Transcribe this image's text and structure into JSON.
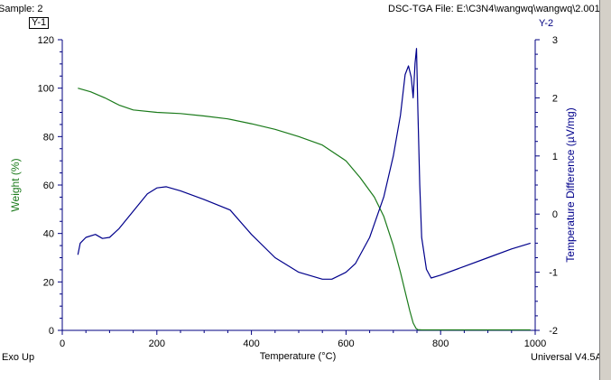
{
  "header": {
    "sample_label": "Sample: 2",
    "file_label": "DSC-TGA File: E:\\C3N4\\wangwq\\wangwq\\2.001",
    "y1_tag": "Y-1",
    "y2_tag": "Y-2"
  },
  "footer": {
    "left_label": "Exo Up",
    "right_label": "Universal V4.5A"
  },
  "colors": {
    "weight_series": "#1a7a1a",
    "heatflow_series": "#00008b",
    "axis": "#000080",
    "left_axis_label": "#1a7a1a",
    "right_axis_label": "#00008b"
  },
  "chart_data": {
    "type": "line",
    "xlabel": "Temperature (°C)",
    "ylabel_left": "Weight (%)",
    "ylabel_right": "Temperature Difference (µV/mg)",
    "xlim": [
      0,
      1000
    ],
    "ylim_left": [
      0,
      120
    ],
    "ylim_right": [
      -2,
      3
    ],
    "x_ticks": [
      0,
      200,
      400,
      600,
      800,
      1000
    ],
    "y_left_ticks": [
      0,
      20,
      40,
      60,
      80,
      100,
      120
    ],
    "y_right_ticks": [
      -2,
      -1,
      0,
      1,
      2,
      3
    ],
    "grid": false,
    "series": [
      {
        "axis": "left",
        "color": "#1a7a1a",
        "x": [
          33,
          60,
          90,
          120,
          150,
          200,
          250,
          300,
          350,
          400,
          450,
          500,
          550,
          600,
          630,
          660,
          680,
          700,
          715,
          725,
          735,
          742,
          748,
          752,
          760,
          800,
          900,
          990
        ],
        "y": [
          100,
          98.5,
          96,
          93,
          91,
          90,
          89.5,
          88.5,
          87.3,
          85.3,
          83,
          80,
          76.5,
          70,
          63,
          55,
          47,
          35,
          24,
          16,
          8,
          3,
          0.8,
          0.3,
          0.2,
          0.2,
          0.2,
          0.2
        ]
      },
      {
        "axis": "right",
        "color": "#00008b",
        "x": [
          33,
          38,
          50,
          70,
          85,
          100,
          120,
          150,
          180,
          200,
          220,
          250,
          300,
          355,
          400,
          450,
          500,
          550,
          570,
          600,
          620,
          650,
          680,
          700,
          715,
          725,
          732,
          738,
          742,
          746,
          749,
          752,
          756,
          760,
          770,
          780,
          800,
          850,
          900,
          950,
          990
        ],
        "y": [
          -0.7,
          -0.5,
          -0.4,
          -0.35,
          -0.42,
          -0.4,
          -0.25,
          0.05,
          0.35,
          0.45,
          0.47,
          0.4,
          0.25,
          0.07,
          -0.35,
          -0.75,
          -1.0,
          -1.12,
          -1.12,
          -1.0,
          -0.85,
          -0.4,
          0.3,
          1.0,
          1.7,
          2.4,
          2.55,
          2.35,
          2.0,
          2.6,
          2.85,
          1.8,
          0.5,
          -0.4,
          -0.95,
          -1.1,
          -1.05,
          -0.9,
          -0.75,
          -0.6,
          -0.5
        ]
      }
    ]
  }
}
